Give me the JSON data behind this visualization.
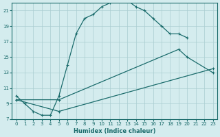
{
  "xlabel": "Humidex (Indice chaleur)",
  "bg_color": "#d4ecee",
  "grid_color": "#aacdd1",
  "line_color": "#1a6b6b",
  "xlim": [
    -0.5,
    23.5
  ],
  "ylim": [
    7,
    22
  ],
  "xticks": [
    0,
    1,
    2,
    3,
    4,
    5,
    6,
    7,
    8,
    9,
    10,
    11,
    12,
    13,
    14,
    15,
    16,
    17,
    18,
    19,
    20,
    21,
    22,
    23
  ],
  "yticks": [
    7,
    9,
    11,
    13,
    15,
    17,
    19,
    21
  ],
  "line1_x": [
    0,
    1,
    2,
    3,
    4,
    5,
    6,
    7,
    8,
    9,
    10,
    11,
    12,
    13,
    14,
    15,
    16,
    17,
    18,
    19,
    20
  ],
  "line1_y": [
    10,
    9,
    8,
    7.5,
    7.5,
    10,
    14,
    18,
    20,
    20.5,
    21.5,
    22,
    22.5,
    22.3,
    21.5,
    21,
    20,
    19,
    18,
    18,
    17.5
  ],
  "line2_x": [
    0,
    5,
    19,
    20,
    23
  ],
  "line2_y": [
    9.5,
    9.5,
    16,
    15,
    13
  ],
  "line3_x": [
    0,
    5,
    23
  ],
  "line3_y": [
    9.5,
    8.0,
    13.5
  ]
}
